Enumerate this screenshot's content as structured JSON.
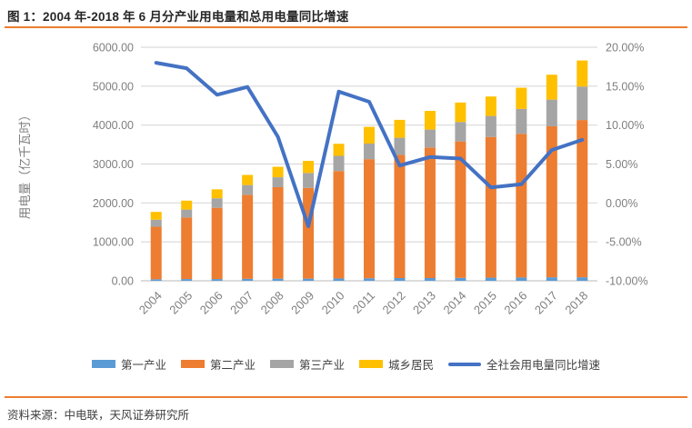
{
  "header": {
    "title": "图 1：2004 年-2018 年 6 月分产业用电量和总用电量同比增速"
  },
  "footer": {
    "source": "资料来源：中电联，天风证券研究所"
  },
  "colors": {
    "primary_industry": "#5B9BD5",
    "secondary_industry": "#ED7D31",
    "tertiary_industry": "#A5A5A5",
    "residents": "#FFC000",
    "growth_line": "#4472C4",
    "grid": "#D9D9D9",
    "axis_line": "#C6C6C6",
    "axis_text": "#7F7F7F",
    "accent_rule": "#ED7D31",
    "title_text": "#262626",
    "legend_text": "#404040"
  },
  "chart_data": {
    "type": "combo",
    "bar_mode": "stacked",
    "grid": true,
    "legend_position": "bottom",
    "categories": [
      "2004",
      "2005",
      "2006",
      "2007",
      "2008",
      "2009",
      "2010",
      "2011",
      "2012",
      "2013",
      "2014",
      "2015",
      "2016",
      "2017",
      "2018"
    ],
    "series": [
      {
        "key": "primary-industry",
        "name": "第一产业",
        "type": "bar",
        "axis": "left",
        "color_key": "primary_industry",
        "values": [
          40,
          45,
          45,
          50,
          55,
          55,
          60,
          65,
          70,
          70,
          75,
          80,
          85,
          90,
          90
        ]
      },
      {
        "key": "secondary-industry",
        "name": "第二产业",
        "type": "bar",
        "axis": "left",
        "color_key": "secondary_industry",
        "values": [
          1350,
          1580,
          1830,
          2160,
          2350,
          2330,
          2760,
          3060,
          3165,
          3355,
          3505,
          3615,
          3690,
          3880,
          4040
        ]
      },
      {
        "key": "tertiary-industry",
        "name": "第三产业",
        "type": "bar",
        "axis": "left",
        "color_key": "tertiary_industry",
        "values": [
          180,
          205,
          245,
          250,
          255,
          385,
          390,
          400,
          440,
          460,
          500,
          540,
          640,
          685,
          860
        ]
      },
      {
        "key": "residents",
        "name": "城乡居民",
        "type": "bar",
        "axis": "left",
        "color_key": "residents",
        "values": [
          200,
          230,
          230,
          260,
          270,
          310,
          310,
          430,
          460,
          480,
          500,
          500,
          545,
          640,
          670
        ]
      },
      {
        "key": "total-growth-line",
        "name": "全社会用电量同比增速",
        "type": "line",
        "axis": "right",
        "color_key": "growth_line",
        "values": [
          18.0,
          17.3,
          13.9,
          14.9,
          8.5,
          -3.0,
          14.3,
          13.0,
          4.8,
          5.9,
          5.7,
          2.0,
          2.4,
          6.8,
          8.1
        ]
      }
    ],
    "stacked_totals": [
      1770,
      2060,
      2350,
      2720,
      2930,
      3080,
      3520,
      3955,
      4135,
      4365,
      4580,
      4735,
      4960,
      5295,
      5660
    ],
    "y_left": {
      "title": "用电量（亿千瓦时）",
      "min": 0,
      "max": 6000,
      "tick_step": 1000,
      "ticks": [
        "0.00",
        "1000.00",
        "2000.00",
        "3000.00",
        "4000.00",
        "5000.00",
        "6000.00"
      ]
    },
    "y_right": {
      "min": -10,
      "max": 20,
      "tick_step": 5,
      "ticks": [
        "-10.00%",
        "-5.00%",
        "0.00%",
        "5.00%",
        "10.00%",
        "15.00%",
        "20.00%"
      ]
    }
  }
}
